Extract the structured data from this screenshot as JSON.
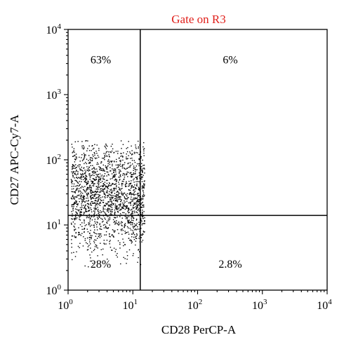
{
  "chart_data": {
    "type": "scatter",
    "title": "Gate on R3",
    "xlabel": "CD28 PerCP-A",
    "ylabel": "CD27 APC-Cy7-A",
    "x_scale": "log",
    "y_scale": "log",
    "xlim": [
      1,
      10000
    ],
    "ylim": [
      1,
      10000
    ],
    "x_ticks": [
      {
        "base": "10",
        "exp": "0",
        "value": 1
      },
      {
        "base": "10",
        "exp": "1",
        "value": 10
      },
      {
        "base": "10",
        "exp": "2",
        "value": 100
      },
      {
        "base": "10",
        "exp": "3",
        "value": 1000
      },
      {
        "base": "10",
        "exp": "4",
        "value": 10000
      }
    ],
    "y_ticks": [
      {
        "base": "10",
        "exp": "0",
        "value": 1
      },
      {
        "base": "10",
        "exp": "1",
        "value": 10
      },
      {
        "base": "10",
        "exp": "2",
        "value": 100
      },
      {
        "base": "10",
        "exp": "3",
        "value": 1000
      },
      {
        "base": "10",
        "exp": "4",
        "value": 10000
      }
    ],
    "gates": {
      "x": 13,
      "y": 14
    },
    "quadrants": [
      {
        "position": "upper-left",
        "label": "63%"
      },
      {
        "position": "upper-right",
        "label": "6%"
      },
      {
        "position": "lower-left",
        "label": "28%"
      },
      {
        "position": "lower-right",
        "label": "2.8%"
      }
    ],
    "cloud": {
      "x_range": [
        1.1,
        15
      ],
      "y_range": [
        1.1,
        200
      ],
      "y_center": 30,
      "point_count": 1900
    },
    "title_color": "#e0201b",
    "grid": false
  }
}
